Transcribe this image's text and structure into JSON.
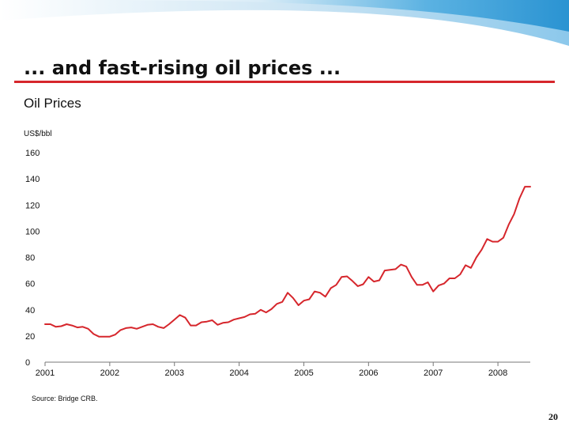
{
  "slide": {
    "title": "... and fast-rising oil prices ...",
    "source": "Source: Bridge CRB.",
    "page_number": "20",
    "accent_color": "#d6262c"
  },
  "chart_data": {
    "type": "line",
    "title": "Oil Prices",
    "ylabel": "US$/bbl",
    "xlabel": "",
    "ylim": [
      0,
      160
    ],
    "xlim": [
      2001,
      2008.5
    ],
    "yticks": [
      "0",
      "20",
      "40",
      "60",
      "80",
      "100",
      "120",
      "140",
      "160"
    ],
    "xticks": [
      "2001",
      "2002",
      "2003",
      "2004",
      "2005",
      "2006",
      "2007",
      "2008"
    ],
    "grid": false,
    "series": [
      {
        "color": "#d6262c",
        "x": [
          2001.0,
          2001.083,
          2001.167,
          2001.25,
          2001.333,
          2001.417,
          2001.5,
          2001.583,
          2001.667,
          2001.75,
          2001.833,
          2001.917,
          2002.0,
          2002.083,
          2002.167,
          2002.25,
          2002.333,
          2002.417,
          2002.5,
          2002.583,
          2002.667,
          2002.75,
          2002.833,
          2002.917,
          2003.0,
          2003.083,
          2003.167,
          2003.25,
          2003.333,
          2003.417,
          2003.5,
          2003.583,
          2003.667,
          2003.75,
          2003.833,
          2003.917,
          2004.0,
          2004.083,
          2004.167,
          2004.25,
          2004.333,
          2004.417,
          2004.5,
          2004.583,
          2004.667,
          2004.75,
          2004.833,
          2004.917,
          2005.0,
          2005.083,
          2005.167,
          2005.25,
          2005.333,
          2005.417,
          2005.5,
          2005.583,
          2005.667,
          2005.75,
          2005.833,
          2005.917,
          2006.0,
          2006.083,
          2006.167,
          2006.25,
          2006.333,
          2006.417,
          2006.5,
          2006.583,
          2006.667,
          2006.75,
          2006.833,
          2006.917,
          2007.0,
          2007.083,
          2007.167,
          2007.25,
          2007.333,
          2007.417,
          2007.5,
          2007.583,
          2007.667,
          2007.75,
          2007.833,
          2007.917,
          2008.0,
          2008.083,
          2008.167,
          2008.25,
          2008.333,
          2008.417,
          2008.5
        ],
        "values": [
          29,
          29,
          27,
          27.5,
          29,
          28,
          26.5,
          27,
          25.5,
          21.5,
          19.5,
          19.5,
          19.5,
          21,
          24.5,
          26,
          26.5,
          25.5,
          27,
          28.5,
          29,
          27,
          26,
          29,
          32.5,
          36,
          34,
          28,
          28,
          30.5,
          31,
          32,
          28.5,
          30,
          30.5,
          32.5,
          33.5,
          34.5,
          36.5,
          37,
          40,
          38,
          40.5,
          44.5,
          46,
          53,
          49,
          43.5,
          47,
          48,
          54,
          53,
          50,
          56.5,
          59,
          65,
          65.5,
          62,
          58,
          59.5,
          65,
          61.5,
          62.5,
          70,
          70.5,
          71,
          74.5,
          73,
          65,
          59,
          59,
          61,
          54,
          58.5,
          60,
          64,
          64,
          67,
          74,
          72,
          80,
          86,
          94,
          92,
          92,
          95,
          105,
          113,
          125,
          134,
          134
        ]
      }
    ]
  }
}
